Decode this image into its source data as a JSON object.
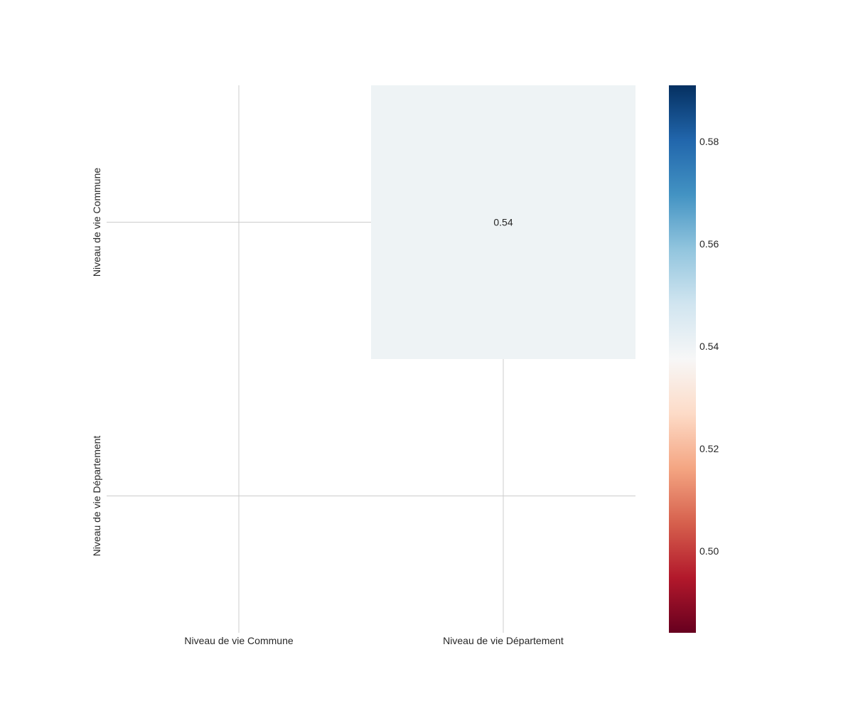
{
  "chart_data": {
    "type": "heatmap",
    "title": "",
    "xlabel": "",
    "ylabel": "",
    "x_labels": [
      "Niveau de vie Commune",
      "Niveau de vie Département"
    ],
    "y_labels": [
      "Niveau de vie Commune",
      "Niveau de vie Département"
    ],
    "cells": [
      {
        "row": 0,
        "col": 1,
        "value": 0.54,
        "label": "0.54"
      }
    ],
    "masked": "lower triangle including diagonal (blank)",
    "colormap": "RdBu",
    "colorbar": {
      "range": [
        0.484,
        0.591
      ],
      "ticks": [
        0.5,
        0.52,
        0.54,
        0.56,
        0.58
      ],
      "tick_labels": [
        "0.50",
        "0.52",
        "0.54",
        "0.56",
        "0.58"
      ]
    },
    "grid": true
  },
  "colors": {
    "grid": "#cccccc",
    "text": "#262626",
    "colormap_stops": [
      "#67001f",
      "#b2182b",
      "#d6604d",
      "#f4a582",
      "#fddbc7",
      "#f7f7f7",
      "#d1e5f0",
      "#92c5de",
      "#4393c3",
      "#2166ac",
      "#053061"
    ]
  }
}
